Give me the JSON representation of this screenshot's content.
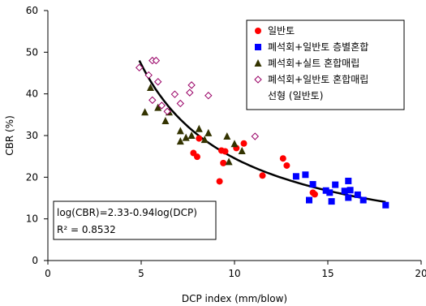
{
  "chart_data": {
    "type": "scatter",
    "xlabel": "DCP index (mm/blow)",
    "ylabel": "CBR (%)",
    "xlim": [
      0,
      20
    ],
    "ylim": [
      0,
      60
    ],
    "xticks": [
      0,
      5,
      10,
      15,
      20
    ],
    "yticks": [
      0,
      10,
      20,
      30,
      40,
      50,
      60
    ],
    "grid": false,
    "legend_position": "top-right",
    "series": [
      {
        "name": "일반토",
        "marker": "circle",
        "color": "#ff0000",
        "points": [
          [
            7.8,
            25.8
          ],
          [
            8.0,
            24.9
          ],
          [
            8.1,
            29.3
          ],
          [
            9.2,
            19.0
          ],
          [
            9.3,
            26.4
          ],
          [
            9.4,
            23.4
          ],
          [
            9.5,
            26.2
          ],
          [
            10.1,
            27.0
          ],
          [
            10.5,
            28.1
          ],
          [
            11.5,
            20.4
          ],
          [
            12.6,
            24.5
          ],
          [
            12.8,
            22.8
          ],
          [
            14.2,
            16.3
          ],
          [
            14.3,
            15.9
          ]
        ]
      },
      {
        "name": "폐석회+일반토 층별혼합",
        "marker": "square",
        "color": "#0000ff",
        "points": [
          [
            13.3,
            20.2
          ],
          [
            13.8,
            20.6
          ],
          [
            14.0,
            14.5
          ],
          [
            14.2,
            18.3
          ],
          [
            14.9,
            16.8
          ],
          [
            15.1,
            16.3
          ],
          [
            15.2,
            14.2
          ],
          [
            15.4,
            18.2
          ],
          [
            15.9,
            16.7
          ],
          [
            16.1,
            19.1
          ],
          [
            16.1,
            15.1
          ],
          [
            16.2,
            16.9
          ],
          [
            16.6,
            15.8
          ],
          [
            16.9,
            14.5
          ],
          [
            18.1,
            13.3
          ]
        ]
      },
      {
        "name": "폐석회+실트 혼합매립",
        "marker": "triangle",
        "color": "#333300",
        "points": [
          [
            5.2,
            35.6
          ],
          [
            5.5,
            41.5
          ],
          [
            5.9,
            36.7
          ],
          [
            6.3,
            33.5
          ],
          [
            6.5,
            35.6
          ],
          [
            7.1,
            31.1
          ],
          [
            7.1,
            28.6
          ],
          [
            7.4,
            29.5
          ],
          [
            7.7,
            30.0
          ],
          [
            8.1,
            31.6
          ],
          [
            8.4,
            29.0
          ],
          [
            8.6,
            30.6
          ],
          [
            9.6,
            29.8
          ],
          [
            9.7,
            23.7
          ],
          [
            10.0,
            28.0
          ],
          [
            10.4,
            26.3
          ]
        ]
      },
      {
        "name": "폐석회+일반토 혼합매립",
        "marker": "diamond",
        "color": "#990066",
        "points": [
          [
            4.9,
            46.3
          ],
          [
            5.4,
            44.5
          ],
          [
            5.6,
            48.0
          ],
          [
            5.8,
            48.0
          ],
          [
            5.6,
            38.5
          ],
          [
            5.9,
            42.9
          ],
          [
            6.1,
            37.2
          ],
          [
            6.4,
            35.8
          ],
          [
            6.8,
            39.9
          ],
          [
            7.1,
            37.7
          ],
          [
            7.6,
            40.3
          ],
          [
            7.7,
            42.1
          ],
          [
            8.6,
            39.6
          ],
          [
            11.1,
            29.8
          ]
        ]
      }
    ],
    "fit_line": {
      "name": "선형 (일반토)",
      "equation": "log(CBR)=2.33-0.94log(DCP)",
      "r2": "R² = 0.8532",
      "color": "#000000",
      "a": 2.33,
      "b": -0.94,
      "x_range": [
        4.9,
        18.1
      ]
    }
  }
}
